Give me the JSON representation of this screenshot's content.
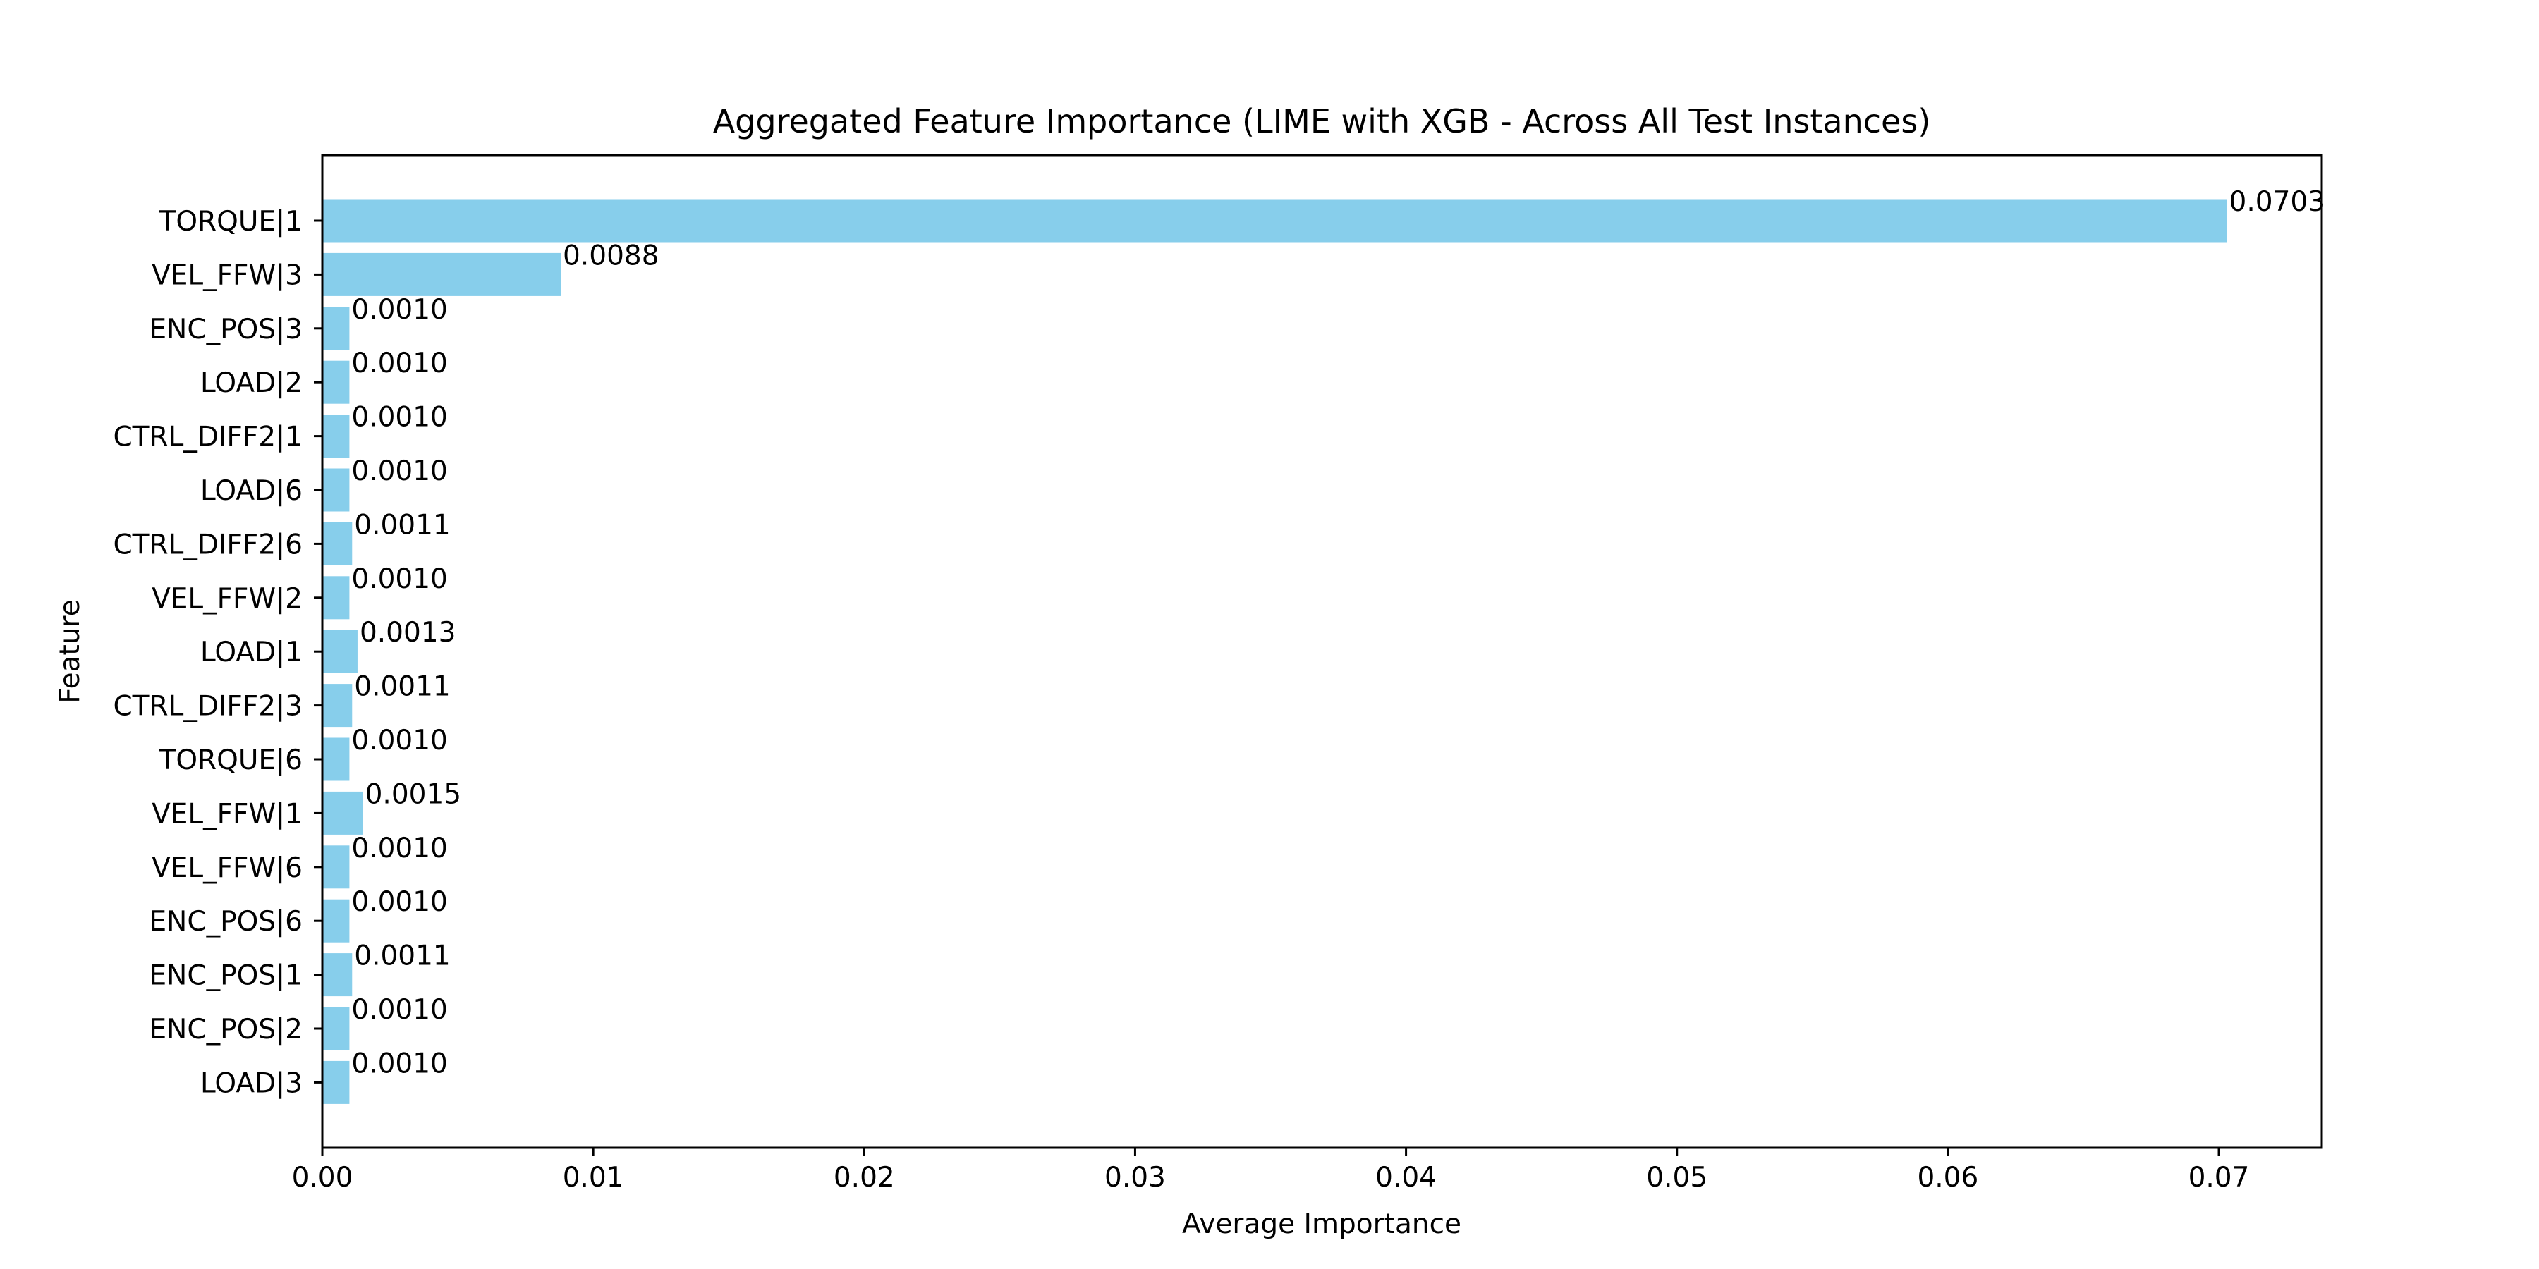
{
  "chart_data": {
    "type": "bar",
    "orientation": "horizontal",
    "title": "Aggregated Feature Importance (LIME with XGB - Across All Test Instances)",
    "xlabel": "Average Importance",
    "ylabel": "Feature",
    "xlim": [
      0,
      0.0738
    ],
    "xticks": [
      0.0,
      0.01,
      0.02,
      0.03,
      0.04,
      0.05,
      0.06,
      0.07
    ],
    "xtick_labels": [
      "0.00",
      "0.01",
      "0.02",
      "0.03",
      "0.04",
      "0.05",
      "0.06",
      "0.07"
    ],
    "grid": false,
    "bar_color": "#87ceeb",
    "categories": [
      "TORQUE|1",
      "VEL_FFW|3",
      "ENC_POS|3",
      "LOAD|2",
      "CTRL_DIFF2|1",
      "LOAD|6",
      "CTRL_DIFF2|6",
      "VEL_FFW|2",
      "LOAD|1",
      "CTRL_DIFF2|3",
      "TORQUE|6",
      "VEL_FFW|1",
      "VEL_FFW|6",
      "ENC_POS|6",
      "ENC_POS|1",
      "ENC_POS|2",
      "LOAD|3"
    ],
    "values": [
      0.0703,
      0.0088,
      0.001,
      0.001,
      0.001,
      0.001,
      0.0011,
      0.001,
      0.0013,
      0.0011,
      0.001,
      0.0015,
      0.001,
      0.001,
      0.0011,
      0.001,
      0.001
    ],
    "value_labels": [
      "0.0703",
      "0.0088",
      "0.0010",
      "0.0010",
      "0.0010",
      "0.0010",
      "0.0011",
      "0.0010",
      "0.0013",
      "0.0011",
      "0.0010",
      "0.0015",
      "0.0010",
      "0.0010",
      "0.0011",
      "0.0010",
      "0.0010"
    ]
  }
}
